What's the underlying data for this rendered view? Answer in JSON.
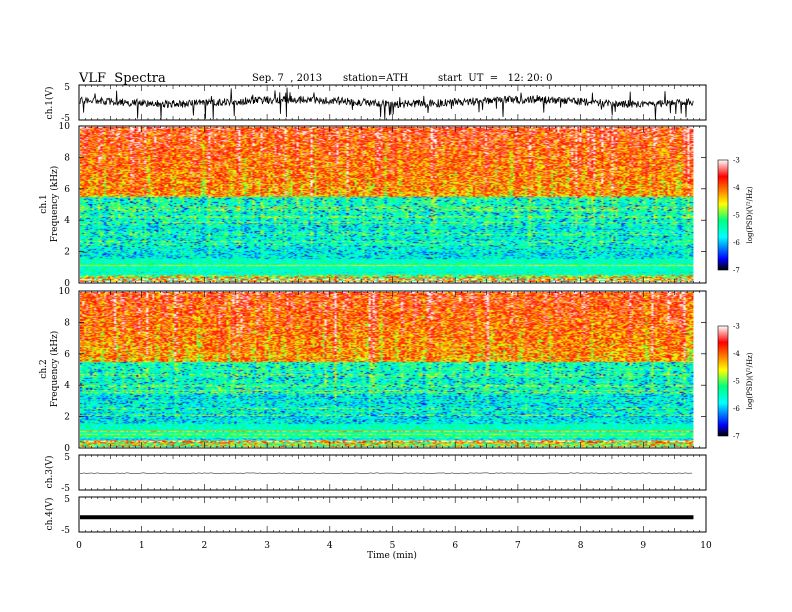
{
  "header": {
    "title": "VLF  Spectra",
    "date": "Sep. 7  , 2013",
    "station": "station=ATH",
    "start": "start  UT  =   12: 20: 0"
  },
  "chart_data": [
    {
      "id": "ch1-waveform",
      "type": "line",
      "ylabel": "ch.1(V)",
      "ylim": [
        -5,
        5
      ],
      "yticks": [
        "5",
        "-5"
      ],
      "xlim": [
        0,
        10
      ],
      "description_level": 0.2
    },
    {
      "id": "ch1-spectrogram",
      "type": "heatmap",
      "ylabel": "ch.1\nFrequency (kHz)",
      "ylabel_line1": "ch.1",
      "ylabel_line2": "Frequency  (kHz)",
      "ylim": [
        0,
        10
      ],
      "yticks": [
        "0",
        "2",
        "4",
        "6",
        "8",
        "10"
      ],
      "xlim": [
        0,
        10
      ],
      "data_end_min": 9.8,
      "colorbar": {
        "label": "log(PSD)(V²/Hz)",
        "range": [
          -7,
          -3
        ],
        "ticks": [
          "-3",
          "-4",
          "-5",
          "-6",
          "-7"
        ]
      }
    },
    {
      "id": "ch2-spectrogram",
      "type": "heatmap",
      "ylabel_line1": "ch.2",
      "ylabel_line2": "Frequency  (kHz)",
      "ylim": [
        0,
        10
      ],
      "yticks": [
        "0",
        "2",
        "4",
        "6",
        "8",
        "10"
      ],
      "xlim": [
        0,
        10
      ],
      "data_end_min": 9.8,
      "colorbar": {
        "label": "log(PSD)(V²/Hz)",
        "range": [
          -7,
          -3
        ],
        "ticks": [
          "-3",
          "-4",
          "-5",
          "-6",
          "-7"
        ]
      }
    },
    {
      "id": "ch3-waveform",
      "type": "line",
      "ylabel": "ch.3(V)",
      "ylim": [
        -5,
        5
      ],
      "yticks": [
        "5",
        "-5"
      ],
      "level": -0.2
    },
    {
      "id": "ch4-waveform",
      "type": "line",
      "ylabel": "ch.4(V)",
      "ylim": [
        -5,
        5
      ],
      "yticks": [
        "5",
        "-5"
      ],
      "level": -0.8
    }
  ],
  "xaxis": {
    "label": "Time  (min)",
    "range": [
      0,
      10
    ],
    "ticks": [
      "0",
      "1",
      "2",
      "3",
      "4",
      "5",
      "6",
      "7",
      "8",
      "9",
      "10"
    ]
  },
  "colors": {
    "scale": [
      "#000000",
      "#0000ff",
      "#00ffff",
      "#00ff80",
      "#ffff00",
      "#ff8000",
      "#ff0000",
      "#ffffff"
    ]
  }
}
